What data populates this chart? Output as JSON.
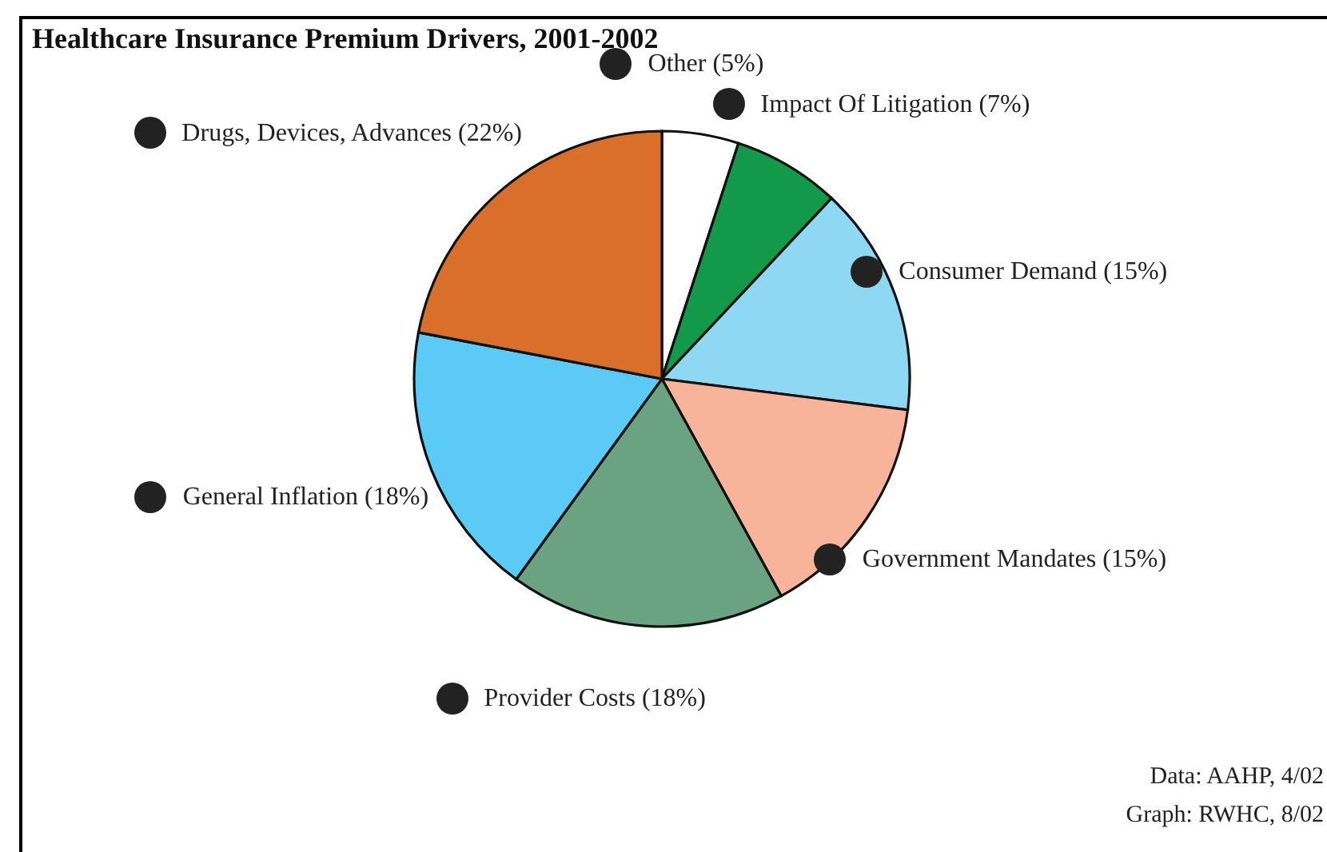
{
  "chart_data": {
    "type": "pie",
    "title": "Healthcare Insurance Premium Drivers, 2001-2002",
    "categories": [
      "Other (5%)",
      "Impact Of Litigation (7%)",
      "Consumer Demand (15%)",
      "Government Mandates (15%)",
      "Provider Costs (18%)",
      "General Inflation (18%)",
      "Drugs, Devices, Advances (22%)"
    ],
    "values": [
      5,
      7,
      15,
      15,
      18,
      18,
      22
    ],
    "colors": [
      "#ffffff",
      "#129a4a",
      "#8fd8f4",
      "#f8b49a",
      "#6aa381",
      "#5bcaf5",
      "#d86f2a"
    ],
    "annotations": [
      "Data: AAHP, 4/02",
      "Graph: RWHC, 8/02"
    ]
  }
}
